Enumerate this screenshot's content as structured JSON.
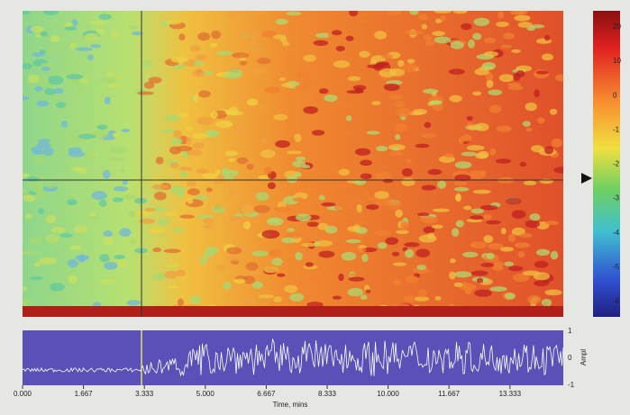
{
  "spectrogram": {
    "colorbar_ticks": [
      "20",
      "10",
      "0",
      "-1",
      "-2",
      "-3",
      "-4",
      "-5",
      "-6"
    ]
  },
  "waveform": {
    "yticks": [
      "1",
      "0",
      "-1"
    ],
    "ylabel": "Ampl"
  },
  "time_axis": {
    "ticks": [
      "0.000",
      "1.667",
      "3.333",
      "5.000",
      "6.667",
      "8.333",
      "10.000",
      "11.667",
      "13.333"
    ],
    "label": "Time, mins"
  }
}
